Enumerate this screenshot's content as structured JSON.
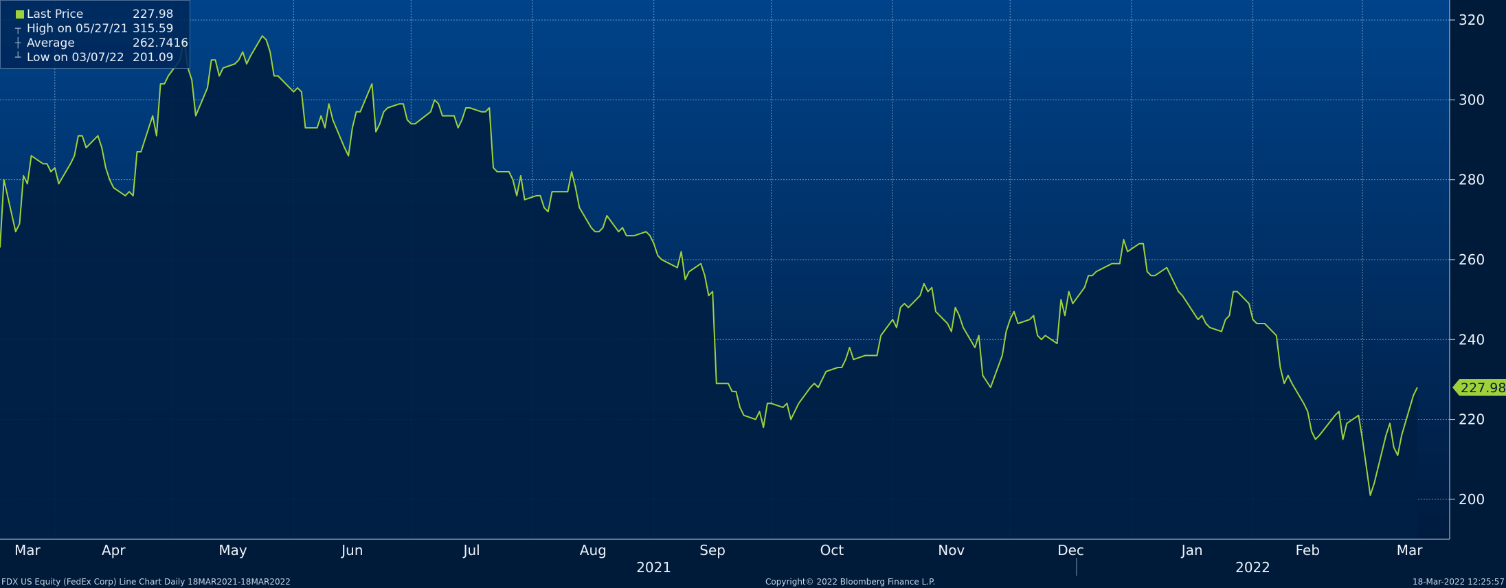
{
  "legend": {
    "last_price_label": "Last Price",
    "last_price_value": "227.98",
    "high_label": "High on 05/27/21",
    "high_value": "315.59",
    "average_label": "Average",
    "average_value": "262.7416",
    "low_label": "Low on 03/07/22",
    "low_value": "201.09"
  },
  "last_price_tag": "227.98",
  "footer": {
    "left": "FDX US Equity (FedEx Corp) Line Chart  Daily 18MAR2021-18MAR2022",
    "center": "Copyright© 2022 Bloomberg Finance L.P.",
    "right": "18-Mar-2022 12:25:57"
  },
  "colors": {
    "line": "#9fd23a",
    "background_top": "#00438a",
    "background_bottom": "#001b3f",
    "fill": "#001f44"
  },
  "chart_data": {
    "type": "area",
    "title": "",
    "xlabel": "",
    "ylabel": "",
    "ylim": [
      190,
      325
    ],
    "yticks": [
      200,
      220,
      240,
      260,
      280,
      300,
      320
    ],
    "y_axis_side": "right",
    "grid": true,
    "legend_position": "top-left",
    "x_range": [
      "2021-03-18",
      "2022-03-18"
    ],
    "month_ticks": [
      {
        "label": "Mar",
        "date": "2021-03-01"
      },
      {
        "label": "Apr",
        "date": "2021-04-01"
      },
      {
        "label": "May",
        "date": "2021-05-01"
      },
      {
        "label": "Jun",
        "date": "2021-06-01"
      },
      {
        "label": "Jul",
        "date": "2021-07-01"
      },
      {
        "label": "Aug",
        "date": "2021-08-01"
      },
      {
        "label": "Sep",
        "date": "2021-09-01"
      },
      {
        "label": "Oct",
        "date": "2021-10-01"
      },
      {
        "label": "Nov",
        "date": "2021-11-01"
      },
      {
        "label": "Dec",
        "date": "2021-12-01"
      },
      {
        "label": "Jan",
        "date": "2022-01-01"
      },
      {
        "label": "Feb",
        "date": "2022-02-01"
      },
      {
        "label": "Mar",
        "date": "2022-03-01"
      }
    ],
    "year_labels": [
      {
        "label": "2021",
        "date": "2021-09-01"
      },
      {
        "label": "2022",
        "date": "2022-02-01"
      }
    ],
    "series": [
      {
        "name": "Last Price",
        "points": [
          [
            "2021-03-18",
            263
          ],
          [
            "2021-03-19",
            280
          ],
          [
            "2021-03-22",
            267
          ],
          [
            "2021-03-23",
            269
          ],
          [
            "2021-03-24",
            281
          ],
          [
            "2021-03-25",
            279
          ],
          [
            "2021-03-26",
            286
          ],
          [
            "2021-03-29",
            284
          ],
          [
            "2021-03-30",
            284
          ],
          [
            "2021-03-31",
            282
          ],
          [
            "2021-04-01",
            283
          ],
          [
            "2021-04-02",
            279
          ],
          [
            "2021-04-05",
            284
          ],
          [
            "2021-04-06",
            286
          ],
          [
            "2021-04-07",
            291
          ],
          [
            "2021-04-08",
            291
          ],
          [
            "2021-04-09",
            288
          ],
          [
            "2021-04-12",
            291
          ],
          [
            "2021-04-13",
            288
          ],
          [
            "2021-04-14",
            283
          ],
          [
            "2021-04-15",
            280
          ],
          [
            "2021-04-16",
            278
          ],
          [
            "2021-04-19",
            276
          ],
          [
            "2021-04-20",
            277
          ],
          [
            "2021-04-21",
            276
          ],
          [
            "2021-04-22",
            287
          ],
          [
            "2021-04-23",
            287
          ],
          [
            "2021-04-26",
            296
          ],
          [
            "2021-04-27",
            291
          ],
          [
            "2021-04-28",
            304
          ],
          [
            "2021-04-29",
            304
          ],
          [
            "2021-04-30",
            306
          ],
          [
            "2021-05-03",
            310
          ],
          [
            "2021-05-04",
            315
          ],
          [
            "2021-05-05",
            308
          ],
          [
            "2021-05-06",
            305
          ],
          [
            "2021-05-07",
            296
          ],
          [
            "2021-05-10",
            303
          ],
          [
            "2021-05-11",
            310
          ],
          [
            "2021-05-12",
            310
          ],
          [
            "2021-05-13",
            306
          ],
          [
            "2021-05-14",
            308
          ],
          [
            "2021-05-17",
            309
          ],
          [
            "2021-05-18",
            310
          ],
          [
            "2021-05-19",
            312
          ],
          [
            "2021-05-20",
            309
          ],
          [
            "2021-05-21",
            311
          ],
          [
            "2021-05-24",
            316
          ],
          [
            "2021-05-25",
            315
          ],
          [
            "2021-05-26",
            312
          ],
          [
            "2021-05-27",
            306
          ],
          [
            "2021-05-28",
            306
          ],
          [
            "2021-06-01",
            302
          ],
          [
            "2021-06-02",
            303
          ],
          [
            "2021-06-03",
            302
          ],
          [
            "2021-06-04",
            293
          ],
          [
            "2021-06-07",
            293
          ],
          [
            "2021-06-08",
            296
          ],
          [
            "2021-06-09",
            293
          ],
          [
            "2021-06-10",
            299
          ],
          [
            "2021-06-11",
            295
          ],
          [
            "2021-06-14",
            288
          ],
          [
            "2021-06-15",
            286
          ],
          [
            "2021-06-16",
            293
          ],
          [
            "2021-06-17",
            297
          ],
          [
            "2021-06-18",
            297
          ],
          [
            "2021-06-21",
            304
          ],
          [
            "2021-06-22",
            292
          ],
          [
            "2021-06-23",
            294
          ],
          [
            "2021-06-24",
            297
          ],
          [
            "2021-06-25",
            298
          ],
          [
            "2021-06-28",
            299
          ],
          [
            "2021-06-29",
            299
          ],
          [
            "2021-06-30",
            295
          ],
          [
            "2021-07-01",
            294
          ],
          [
            "2021-07-02",
            294
          ],
          [
            "2021-07-06",
            297
          ],
          [
            "2021-07-07",
            300
          ],
          [
            "2021-07-08",
            299
          ],
          [
            "2021-07-09",
            296
          ],
          [
            "2021-07-12",
            296
          ],
          [
            "2021-07-13",
            293
          ],
          [
            "2021-07-14",
            295
          ],
          [
            "2021-07-15",
            298
          ],
          [
            "2021-07-16",
            298
          ],
          [
            "2021-07-19",
            297
          ],
          [
            "2021-07-20",
            297
          ],
          [
            "2021-07-21",
            298
          ],
          [
            "2021-07-22",
            283
          ],
          [
            "2021-07-23",
            282
          ],
          [
            "2021-07-26",
            282
          ],
          [
            "2021-07-27",
            280
          ],
          [
            "2021-07-28",
            276
          ],
          [
            "2021-07-29",
            281
          ],
          [
            "2021-07-30",
            275
          ],
          [
            "2021-08-02",
            276
          ],
          [
            "2021-08-03",
            276
          ],
          [
            "2021-08-04",
            273
          ],
          [
            "2021-08-05",
            272
          ],
          [
            "2021-08-06",
            277
          ],
          [
            "2021-08-09",
            277
          ],
          [
            "2021-08-10",
            277
          ],
          [
            "2021-08-11",
            282
          ],
          [
            "2021-08-12",
            278
          ],
          [
            "2021-08-13",
            273
          ],
          [
            "2021-08-16",
            268
          ],
          [
            "2021-08-17",
            267
          ],
          [
            "2021-08-18",
            267
          ],
          [
            "2021-08-19",
            268
          ],
          [
            "2021-08-20",
            271
          ],
          [
            "2021-08-23",
            267
          ],
          [
            "2021-08-24",
            268
          ],
          [
            "2021-08-25",
            266
          ],
          [
            "2021-08-26",
            266
          ],
          [
            "2021-08-27",
            266
          ],
          [
            "2021-08-30",
            267
          ],
          [
            "2021-08-31",
            266
          ],
          [
            "2021-09-01",
            264
          ],
          [
            "2021-09-02",
            261
          ],
          [
            "2021-09-03",
            260
          ],
          [
            "2021-09-07",
            258
          ],
          [
            "2021-09-08",
            262
          ],
          [
            "2021-09-09",
            255
          ],
          [
            "2021-09-10",
            257
          ],
          [
            "2021-09-13",
            259
          ],
          [
            "2021-09-14",
            256
          ],
          [
            "2021-09-15",
            251
          ],
          [
            "2021-09-16",
            252
          ],
          [
            "2021-09-17",
            229
          ],
          [
            "2021-09-20",
            229
          ],
          [
            "2021-09-21",
            227
          ],
          [
            "2021-09-22",
            227
          ],
          [
            "2021-09-23",
            223
          ],
          [
            "2021-09-24",
            221
          ],
          [
            "2021-09-27",
            220
          ],
          [
            "2021-09-28",
            222
          ],
          [
            "2021-09-29",
            218
          ],
          [
            "2021-09-30",
            224
          ],
          [
            "2021-10-01",
            224
          ],
          [
            "2021-10-04",
            223
          ],
          [
            "2021-10-05",
            224
          ],
          [
            "2021-10-06",
            220
          ],
          [
            "2021-10-07",
            222
          ],
          [
            "2021-10-08",
            224
          ],
          [
            "2021-10-11",
            228
          ],
          [
            "2021-10-12",
            229
          ],
          [
            "2021-10-13",
            228
          ],
          [
            "2021-10-14",
            230
          ],
          [
            "2021-10-15",
            232
          ],
          [
            "2021-10-18",
            233
          ],
          [
            "2021-10-19",
            233
          ],
          [
            "2021-10-20",
            235
          ],
          [
            "2021-10-21",
            238
          ],
          [
            "2021-10-22",
            235
          ],
          [
            "2021-10-25",
            236
          ],
          [
            "2021-10-26",
            236
          ],
          [
            "2021-10-27",
            236
          ],
          [
            "2021-10-28",
            236
          ],
          [
            "2021-10-29",
            241
          ],
          [
            "2021-11-01",
            245
          ],
          [
            "2021-11-02",
            243
          ],
          [
            "2021-11-03",
            248
          ],
          [
            "2021-11-04",
            249
          ],
          [
            "2021-11-05",
            248
          ],
          [
            "2021-11-08",
            251
          ],
          [
            "2021-11-09",
            254
          ],
          [
            "2021-11-10",
            252
          ],
          [
            "2021-11-11",
            253
          ],
          [
            "2021-11-12",
            247
          ],
          [
            "2021-11-15",
            244
          ],
          [
            "2021-11-16",
            242
          ],
          [
            "2021-11-17",
            248
          ],
          [
            "2021-11-18",
            246
          ],
          [
            "2021-11-19",
            243
          ],
          [
            "2021-11-22",
            238
          ],
          [
            "2021-11-23",
            241
          ],
          [
            "2021-11-24",
            231
          ],
          [
            "2021-11-26",
            228
          ],
          [
            "2021-11-29",
            236
          ],
          [
            "2021-11-30",
            242
          ],
          [
            "2021-12-01",
            245
          ],
          [
            "2021-12-02",
            247
          ],
          [
            "2021-12-03",
            244
          ],
          [
            "2021-12-06",
            245
          ],
          [
            "2021-12-07",
            246
          ],
          [
            "2021-12-08",
            241
          ],
          [
            "2021-12-09",
            240
          ],
          [
            "2021-12-10",
            241
          ],
          [
            "2021-12-13",
            239
          ],
          [
            "2021-12-14",
            250
          ],
          [
            "2021-12-15",
            246
          ],
          [
            "2021-12-16",
            252
          ],
          [
            "2021-12-17",
            249
          ],
          [
            "2021-12-20",
            253
          ],
          [
            "2021-12-21",
            256
          ],
          [
            "2021-12-22",
            256
          ],
          [
            "2021-12-23",
            257
          ],
          [
            "2021-12-27",
            259
          ],
          [
            "2021-12-28",
            259
          ],
          [
            "2021-12-29",
            259
          ],
          [
            "2021-12-30",
            265
          ],
          [
            "2021-12-31",
            262
          ],
          [
            "2022-01-03",
            264
          ],
          [
            "2022-01-04",
            264
          ],
          [
            "2022-01-05",
            257
          ],
          [
            "2022-01-06",
            256
          ],
          [
            "2022-01-07",
            256
          ],
          [
            "2022-01-10",
            258
          ],
          [
            "2022-01-11",
            256
          ],
          [
            "2022-01-12",
            254
          ],
          [
            "2022-01-13",
            252
          ],
          [
            "2022-01-14",
            251
          ],
          [
            "2022-01-18",
            245
          ],
          [
            "2022-01-19",
            246
          ],
          [
            "2022-01-20",
            244
          ],
          [
            "2022-01-21",
            243
          ],
          [
            "2022-01-24",
            242
          ],
          [
            "2022-01-25",
            245
          ],
          [
            "2022-01-26",
            246
          ],
          [
            "2022-01-27",
            252
          ],
          [
            "2022-01-28",
            252
          ],
          [
            "2022-01-31",
            249
          ],
          [
            "2022-02-01",
            245
          ],
          [
            "2022-02-02",
            244
          ],
          [
            "2022-02-03",
            244
          ],
          [
            "2022-02-04",
            244
          ],
          [
            "2022-02-07",
            241
          ],
          [
            "2022-02-08",
            233
          ],
          [
            "2022-02-09",
            229
          ],
          [
            "2022-02-10",
            231
          ],
          [
            "2022-02-11",
            229
          ],
          [
            "2022-02-14",
            224
          ],
          [
            "2022-02-15",
            222
          ],
          [
            "2022-02-16",
            217
          ],
          [
            "2022-02-17",
            215
          ],
          [
            "2022-02-18",
            216
          ],
          [
            "2022-02-22",
            221
          ],
          [
            "2022-02-23",
            222
          ],
          [
            "2022-02-24",
            215
          ],
          [
            "2022-02-25",
            219
          ],
          [
            "2022-02-28",
            221
          ],
          [
            "2022-03-01",
            215
          ],
          [
            "2022-03-02",
            208
          ],
          [
            "2022-03-03",
            201
          ],
          [
            "2022-03-04",
            204
          ],
          [
            "2022-03-07",
            216
          ],
          [
            "2022-03-08",
            219
          ],
          [
            "2022-03-09",
            213
          ],
          [
            "2022-03-10",
            211
          ],
          [
            "2022-03-11",
            216
          ],
          [
            "2022-03-14",
            226
          ],
          [
            "2022-03-15",
            228
          ]
        ]
      }
    ]
  }
}
